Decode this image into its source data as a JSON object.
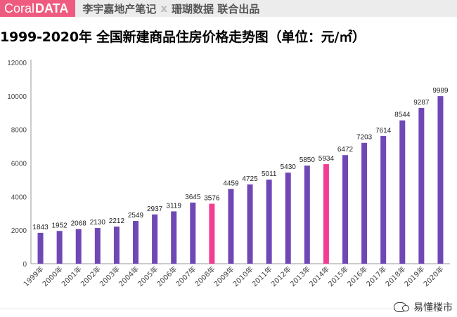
{
  "header": {
    "brand_prefix": "Coral",
    "brand_suffix": "DATA",
    "credit_left": "李宇嘉地产笔记",
    "credit_sep": "x",
    "credit_right": "珊瑚数据 联合出品"
  },
  "watermark": {
    "label": "易懂楼市",
    "icon": "wechat-icon"
  },
  "colors": {
    "bar": "#6f48b6",
    "highlight": "#f23d93",
    "brand": "#ef5a7f"
  },
  "chart_data": {
    "type": "bar",
    "title": "1999-2020年 全国新建商品住房价格走势图（单位：元/㎡）",
    "categories": [
      "1999年",
      "2000年",
      "2001年",
      "2002年",
      "2003年",
      "2004年",
      "2005年",
      "2006年",
      "2007年",
      "2008年",
      "2009年",
      "2010年",
      "2011年",
      "2012年",
      "2013年",
      "2014年",
      "2015年",
      "2016年",
      "2017年",
      "2018年",
      "2019年",
      "2020年"
    ],
    "values": [
      1843,
      1952,
      2068,
      2130,
      2212,
      2549,
      2937,
      3119,
      3645,
      3576,
      4459,
      4725,
      5011,
      5430,
      5850,
      5934,
      6472,
      7203,
      7614,
      8544,
      9287,
      9989
    ],
    "highlight_categories": [
      "2008年",
      "2014年"
    ],
    "ylim": [
      0,
      12000
    ],
    "yticks": [
      0,
      2000,
      4000,
      6000,
      8000,
      10000,
      12000
    ],
    "grid": false,
    "data_labels": true
  }
}
